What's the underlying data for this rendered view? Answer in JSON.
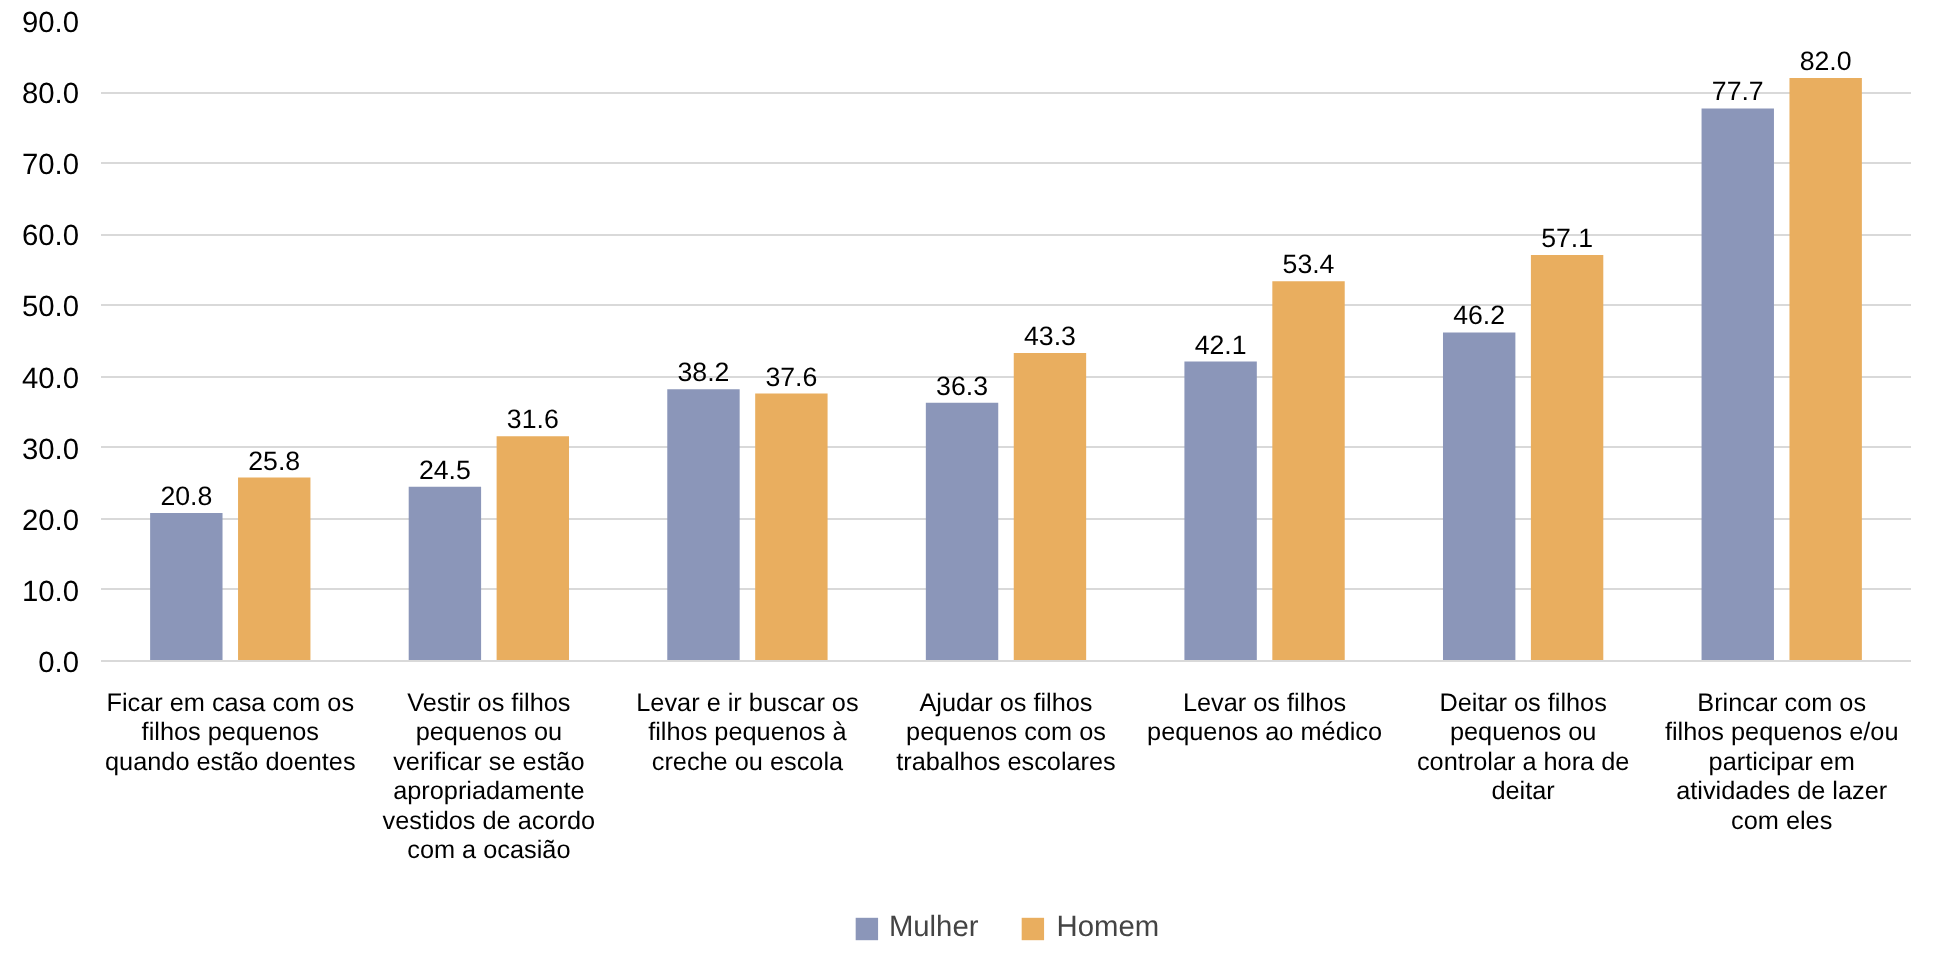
{
  "chart_data": {
    "type": "bar",
    "categories": [
      "Ficar em casa com os\nfilhos pequenos\nquando estão doentes",
      "Vestir os filhos\npequenos ou\nverificar se estão\napropriadamente\nvestidos de acordo\ncom a ocasião",
      "Levar e ir buscar os\nfilhos pequenos à\ncreche ou escola",
      "Ajudar os filhos\npequenos com os\ntrabalhos escolares",
      "Levar os filhos\npequenos ao médico",
      "Deitar os filhos\npequenos ou\ncontrolar a hora de\ndeitar",
      "Brincar com os\nfilhos pequenos e/ou\nparticipar em\natividades de lazer\ncom eles"
    ],
    "series": [
      {
        "name": "Mulher",
        "color": "#8b96b9",
        "values": [
          20.8,
          24.5,
          38.2,
          36.3,
          42.1,
          46.2,
          77.7
        ],
        "value_labels": [
          "20.8",
          "24.5",
          "38.2",
          "36.3",
          "42.1",
          "46.2",
          "77.7"
        ]
      },
      {
        "name": "Homem",
        "color": "#e9ae5f",
        "values": [
          25.8,
          31.6,
          37.6,
          43.3,
          53.4,
          57.1,
          82.0
        ],
        "value_labels": [
          "25.8",
          "31.6",
          "37.6",
          "43.3",
          "53.4",
          "57.1",
          "82.0"
        ]
      }
    ],
    "ylim": [
      0,
      90
    ],
    "yticks": [
      {
        "value": 0,
        "label": "0.0"
      },
      {
        "value": 10,
        "label": "10.0"
      },
      {
        "value": 20,
        "label": "20.0"
      },
      {
        "value": 30,
        "label": "30.0"
      },
      {
        "value": 40,
        "label": "40.0"
      },
      {
        "value": 50,
        "label": "50.0"
      },
      {
        "value": 60,
        "label": "60.0"
      },
      {
        "value": 70,
        "label": "70.0"
      },
      {
        "value": 80,
        "label": "80.0"
      },
      {
        "value": 90,
        "label": "90.0"
      }
    ],
    "grid": "y",
    "legend": "bottom"
  }
}
